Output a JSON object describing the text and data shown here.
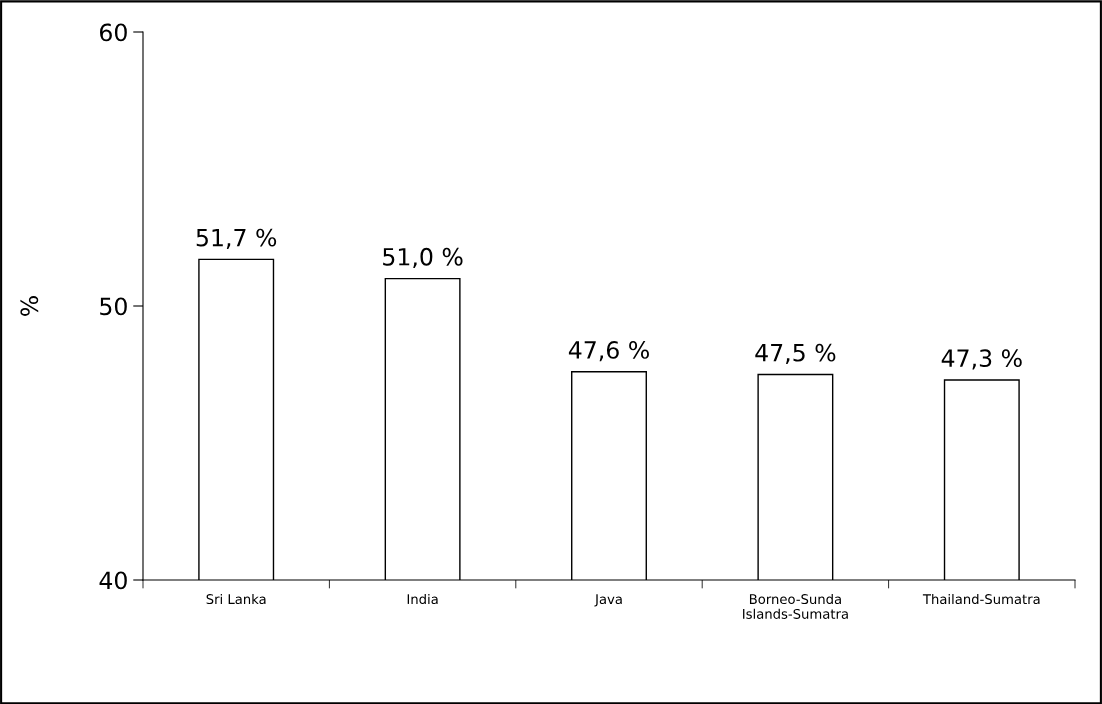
{
  "chart_data": {
    "type": "bar",
    "ylabel": "%",
    "categories": [
      "Sri Lanka",
      "India",
      "Java",
      "Borneo-Sunda\nIslands-Sumatra",
      "Thailand-Sumatra"
    ],
    "values": [
      51.7,
      51.0,
      47.6,
      47.5,
      47.3
    ],
    "value_labels": [
      "51,7 %",
      "51,0 %",
      "47,6 %",
      "47,5 %",
      "47,3 %"
    ],
    "color": "#ffffff",
    "ylim": [
      40,
      60
    ],
    "yticks": [
      40,
      50,
      60
    ],
    "grid": false,
    "legend": false
  }
}
